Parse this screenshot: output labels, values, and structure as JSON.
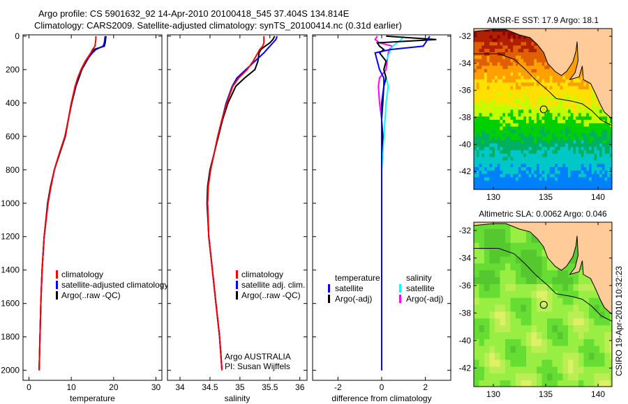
{
  "header": {
    "title1": "Argo profile: CS 5901632_92 14-Apr-2010 20100418_545 37.404S 134.814E",
    "title2": "Climatology: CARS2009. Satellite-adjusted climatology: synTS_20100414.nc (0.31d earlier)"
  },
  "side_label": "CSIRO 19-Apr-2010 10:32:23",
  "colors": {
    "clim": "#ff0000",
    "sat": "#0000ff",
    "argo": "#000000",
    "sal_sat": "#00ffff",
    "sal_argo": "#ff00ff",
    "land": "#ffcc99"
  },
  "chart_data": [
    {
      "type": "line",
      "xlabel": "temperature",
      "ylabel": "",
      "xlim": [
        -1.4,
        31.4
      ],
      "ylim": [
        -8,
        2060
      ],
      "y_reversed": true,
      "xticks": [
        "0",
        "10",
        "20",
        "30"
      ],
      "xtick_values": [
        0,
        10,
        20,
        30
      ],
      "yticks": [
        "0",
        "200",
        "400",
        "600",
        "800",
        "1000",
        "1200",
        "1400",
        "1600",
        "1800",
        "2000"
      ],
      "depth": [
        0,
        20,
        40,
        60,
        80,
        100,
        150,
        200,
        250,
        300,
        400,
        500,
        600,
        700,
        800,
        900,
        1000,
        1200,
        1400,
        1600,
        1800,
        2000
      ],
      "series": [
        {
          "name": "climatology",
          "color": "clim",
          "values": [
            15.8,
            15.8,
            15.7,
            15.6,
            15.0,
            14.6,
            13.3,
            12.3,
            11.5,
            10.9,
            10.0,
            9.3,
            8.5,
            7.2,
            6.0,
            5.2,
            4.5,
            3.6,
            3.1,
            2.8,
            2.6,
            2.4
          ]
        },
        {
          "name": "satellite-adjusted climatology",
          "color": "sat",
          "values": [
            18.0,
            17.9,
            17.8,
            17.5,
            15.8,
            15.0,
            13.4,
            12.4,
            11.6,
            11.0,
            10.0,
            9.3,
            8.5,
            7.2,
            6.0,
            5.2,
            4.5,
            3.6,
            3.1,
            2.8,
            2.6,
            2.4
          ]
        },
        {
          "name": "Argo(..raw -QC)",
          "color": "argo",
          "values": [
            18.2,
            18.1,
            18.0,
            17.8,
            15.3,
            14.8,
            13.6,
            12.5,
            11.8,
            11.1,
            10.1,
            9.3,
            8.6,
            7.3,
            6.0,
            5.1,
            4.4,
            3.6,
            3.1,
            2.8,
            2.6,
            2.4
          ]
        }
      ]
    },
    {
      "type": "line",
      "xlabel": "salinity",
      "xlim": [
        33.79,
        36.12
      ],
      "ylim": [
        -8,
        2060
      ],
      "y_reversed": true,
      "xticks": [
        "34",
        "34.5",
        "35",
        "35.5",
        "36"
      ],
      "xtick_values": [
        34,
        34.5,
        35,
        35.5,
        36
      ],
      "depth": [
        0,
        20,
        40,
        60,
        80,
        100,
        150,
        200,
        250,
        300,
        400,
        500,
        600,
        700,
        800,
        900,
        1000,
        1200,
        1400,
        1600,
        1800,
        2000
      ],
      "series": [
        {
          "name": "climatology",
          "color": "clim",
          "values": [
            35.4,
            35.4,
            35.4,
            35.38,
            35.33,
            35.3,
            35.22,
            35.12,
            34.98,
            34.88,
            34.78,
            34.7,
            34.63,
            34.57,
            34.51,
            34.47,
            34.46,
            34.48,
            34.54,
            34.6,
            34.66,
            34.7
          ]
        },
        {
          "name": "satellite adj. clim.",
          "color": "sat",
          "values": [
            35.62,
            35.6,
            35.55,
            35.5,
            35.45,
            35.4,
            35.25,
            35.1,
            34.95,
            34.87,
            34.77,
            34.7,
            34.63,
            34.57,
            34.51,
            34.47,
            34.46,
            34.48,
            34.54,
            34.6,
            34.66,
            34.7
          ]
        },
        {
          "name": "Argo(..raw -QC)",
          "color": "argo",
          "values": [
            35.58,
            35.55,
            35.5,
            35.42,
            35.35,
            35.32,
            35.3,
            35.25,
            35.08,
            34.93,
            34.8,
            34.71,
            34.64,
            34.57,
            34.5,
            34.46,
            34.45,
            34.48,
            34.54,
            34.6,
            34.66,
            34.7
          ]
        }
      ],
      "annotations": [
        "Argo AUSTRALIA",
        "PI: Susan Wijffels"
      ]
    },
    {
      "type": "line",
      "xlabel": "difference from climatology",
      "xlim": [
        -3.16,
        3.16
      ],
      "ylim": [
        -8,
        2060
      ],
      "y_reversed": true,
      "xticks": [
        "-2",
        "0",
        "2"
      ],
      "xtick_values": [
        -2,
        0,
        2
      ],
      "depth": [
        0,
        20,
        40,
        60,
        80,
        100,
        150,
        200,
        250,
        300,
        400,
        500,
        600,
        700,
        800,
        900,
        1000,
        1200,
        1400,
        1600,
        1800,
        2000
      ],
      "legend_headers": [
        "temperature",
        "salinity"
      ],
      "series": [
        {
          "name": "satellite",
          "group": "temperature",
          "color": "sat",
          "values": [
            2.2,
            2.1,
            2.0,
            1.9,
            0.4,
            -0.3,
            -0.2,
            -0.1,
            0.1,
            0.1,
            0,
            0,
            0,
            0,
            0,
            0,
            0,
            0,
            0,
            0,
            0,
            0
          ]
        },
        {
          "name": "Argo(-adj)",
          "group": "temperature",
          "color": "argo",
          "values": [
            0.2,
            2.5,
            -0.2,
            -0.1,
            0.1,
            -0.1,
            0.2,
            0.1,
            0.2,
            0.1,
            0.05,
            0,
            0.05,
            0,
            0,
            0,
            0,
            0,
            0,
            0,
            0,
            0
          ]
        },
        {
          "name": "satellite",
          "group": "salinity",
          "color": "sal_sat",
          "values": [
            1.0,
            0.9,
            0.7,
            0.5,
            0.4,
            0.35,
            0.2,
            0.1,
            0.2,
            0.3,
            0.2,
            0.15,
            0.1,
            0.05,
            0,
            0,
            0,
            0,
            0,
            0,
            0,
            0
          ]
        },
        {
          "name": "Argo(-adj)",
          "group": "salinity",
          "color": "sal_argo",
          "values": [
            -0.2,
            -0.3,
            -0.1,
            0.5,
            0.35,
            0.3,
            0.25,
            0.2,
            -0.1,
            -0.15,
            -0.1,
            0,
            0,
            0,
            0,
            0,
            0,
            0,
            0,
            0,
            0,
            0
          ]
        }
      ]
    }
  ],
  "maps": [
    {
      "title": "AMSR-E SST: 17.9 Argo: 18.1",
      "kind": "sst",
      "lon_ticks": [
        "130",
        "135",
        "140"
      ],
      "lat_ticks": [
        "-32",
        "-34",
        "-36",
        "-38",
        "-40",
        "-42"
      ]
    },
    {
      "title": "Altimetric SLA: 0.0062 Argo: 0.046",
      "kind": "sla",
      "lon_ticks": [
        "130",
        "135",
        "140"
      ],
      "lat_ticks": [
        "-32",
        "-34",
        "-36",
        "-38",
        "-40",
        "-42"
      ]
    }
  ],
  "float_position": {
    "lon": 134.814,
    "lat": -37.404
  }
}
